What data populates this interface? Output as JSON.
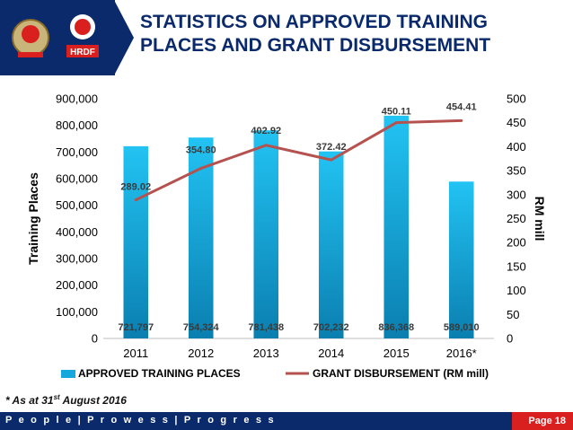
{
  "header": {
    "title_line1": "STATISTICS ON APPROVED TRAINING",
    "title_line2": "PLACES AND GRANT DISBURSEMENT",
    "logo_text": "HRDF"
  },
  "footnote": {
    "prefix": "* As at 31",
    "sup": "st",
    "suffix": " August 2016"
  },
  "footer": {
    "tagline": "P e o p l e | P r o w e s s | P r o g r e s s",
    "page": "Page 18"
  },
  "colors": {
    "navy": "#0a2a6b",
    "bar_top": "#22c3f3",
    "bar_bottom": "#0a7fb0",
    "line": "#b5524f",
    "badge": "#d9201e"
  },
  "chart_data": {
    "type": "bar",
    "categories": [
      "2011",
      "2012",
      "2013",
      "2014",
      "2015",
      "2016*"
    ],
    "series": [
      {
        "name": "APPROVED TRAINING PLACES",
        "type": "bar",
        "axis": "left",
        "values": [
          721797,
          754324,
          781438,
          702232,
          836368,
          589010
        ],
        "labels": [
          "721,797",
          "754,324",
          "781,438",
          "702,232",
          "836,368",
          "589,010"
        ]
      },
      {
        "name": "GRANT DISBURSEMENT (RM mill)",
        "type": "line",
        "axis": "right",
        "values": [
          289.02,
          354.8,
          402.92,
          372.42,
          450.11,
          454.41
        ],
        "labels": [
          "289.02",
          "354.80",
          "402.92",
          "372.42",
          "450.11",
          "454.41"
        ]
      }
    ],
    "ylabel": "Training Places",
    "y2label": "RM mill",
    "ylim": [
      0,
      900000
    ],
    "y2lim": [
      0,
      500
    ],
    "yticks": [
      "0",
      "100,000",
      "200,000",
      "300,000",
      "400,000",
      "500,000",
      "600,000",
      "700,000",
      "800,000",
      "900,000"
    ],
    "y2ticks": [
      "0",
      "50",
      "100",
      "150",
      "200",
      "250",
      "300",
      "350",
      "400",
      "450",
      "500"
    ],
    "legend_position": "bottom",
    "grid": false
  }
}
